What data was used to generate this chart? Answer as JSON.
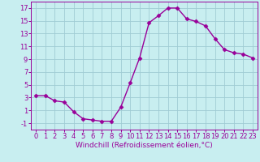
{
  "x": [
    0,
    1,
    2,
    3,
    4,
    5,
    6,
    7,
    8,
    9,
    10,
    11,
    12,
    13,
    14,
    15,
    16,
    17,
    18,
    19,
    20,
    21,
    22,
    23
  ],
  "y": [
    3.3,
    3.3,
    2.5,
    2.3,
    0.8,
    -0.3,
    -0.5,
    -0.7,
    -0.7,
    1.5,
    5.3,
    9.2,
    14.7,
    15.8,
    17.0,
    17.0,
    15.3,
    14.9,
    14.2,
    12.2,
    10.5,
    10.0,
    9.8,
    9.2
  ],
  "xlabel": "Windchill (Refroidissement éolien,°C)",
  "line_color": "#990099",
  "marker": "D",
  "marker_size": 2.5,
  "bg_color": "#c8eef0",
  "grid_color": "#a0ccd4",
  "ylim": [
    -2,
    18
  ],
  "xlim": [
    -0.5,
    23.5
  ],
  "yticks": [
    -1,
    1,
    3,
    5,
    7,
    9,
    11,
    13,
    15,
    17
  ],
  "xticks": [
    0,
    1,
    2,
    3,
    4,
    5,
    6,
    7,
    8,
    9,
    10,
    11,
    12,
    13,
    14,
    15,
    16,
    17,
    18,
    19,
    20,
    21,
    22,
    23
  ],
  "tick_fontsize": 6,
  "xlabel_fontsize": 6.5,
  "linewidth": 1.0
}
